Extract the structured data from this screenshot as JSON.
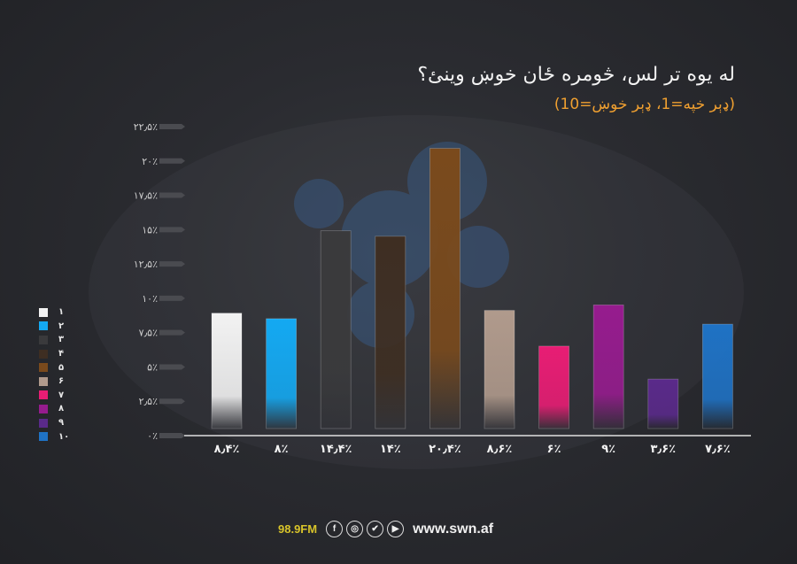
{
  "header": {
    "title": "له یوه تر لس، څومره ځان خوښ وينئ؟",
    "subtitle": "(ډېر خپه=1، ډېر خوښ=10)"
  },
  "footer": {
    "frequency": "98.9FM",
    "website": "www.swn.af",
    "icons": [
      "facebook-icon",
      "instagram-icon",
      "twitter-icon",
      "youtube-icon"
    ]
  },
  "chart_data": {
    "type": "bar",
    "categories": [
      "۱",
      "۲",
      "۳",
      "۴",
      "۵",
      "۶",
      "۷",
      "۸",
      "۹",
      "۱۰"
    ],
    "values": [
      8.4,
      8,
      14.4,
      14,
      20.4,
      8.6,
      6,
      9,
      3.6,
      7.6
    ],
    "value_labels": [
      "۸٫۴٪",
      "۸٪",
      "۱۴٫۴٪",
      "۱۴٪",
      "۲۰٫۴٪",
      "۸٫۶٪",
      "۶٪",
      "۹٪",
      "۳٫۶٪",
      "۷٫۶٪"
    ],
    "colors": [
      "#f2f2f2",
      "#14a9f2",
      "#3a3a3c",
      "#3e2e22",
      "#7a4a1c",
      "#b09a8c",
      "#e81d74",
      "#961c8e",
      "#5a2a8a",
      "#1f72c4"
    ],
    "ylim": [
      0,
      22.5
    ],
    "yticks": [
      0,
      2.5,
      5,
      7.5,
      10,
      12.5,
      15,
      17.5,
      20,
      22.5
    ],
    "ytick_labels": [
      "۰٪",
      "۲٫۵٪",
      "۵٪",
      "۷٫۵٪",
      "۱۰٪",
      "۱۲٫۵٪",
      "۱۵٪",
      "۱۷٫۵٪",
      "۲۰٪",
      "۲۲٫۵٪"
    ],
    "legend": [
      "۱",
      "۲",
      "۳",
      "۴",
      "۵",
      "۶",
      "۷",
      "۸",
      "۹",
      "۱۰"
    ],
    "legend_position": "left",
    "grid": false
  }
}
